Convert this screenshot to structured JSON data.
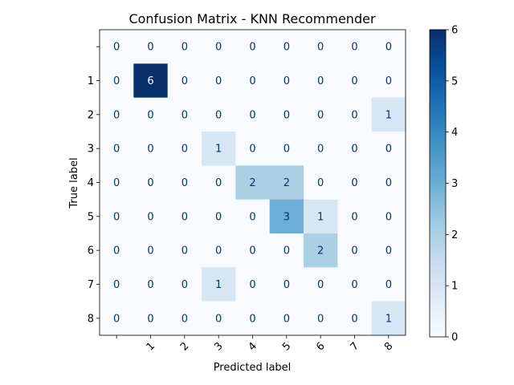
{
  "chart_data": {
    "type": "heatmap",
    "title": "Confusion Matrix - KNN Recommender",
    "xlabel": "Predicted label",
    "ylabel": "True label",
    "labels": [
      "",
      "1",
      "2",
      "3",
      "4",
      "5",
      "6",
      "7",
      "8"
    ],
    "matrix": [
      [
        0,
        0,
        0,
        0,
        0,
        0,
        0,
        0,
        0
      ],
      [
        0,
        6,
        0,
        0,
        0,
        0,
        0,
        0,
        0
      ],
      [
        0,
        0,
        0,
        0,
        0,
        0,
        0,
        0,
        1
      ],
      [
        0,
        0,
        0,
        1,
        0,
        0,
        0,
        0,
        0
      ],
      [
        0,
        0,
        0,
        0,
        2,
        2,
        0,
        0,
        0
      ],
      [
        0,
        0,
        0,
        0,
        0,
        3,
        1,
        0,
        0
      ],
      [
        0,
        0,
        0,
        0,
        0,
        0,
        2,
        0,
        0
      ],
      [
        0,
        0,
        0,
        1,
        0,
        0,
        0,
        0,
        0
      ],
      [
        0,
        0,
        0,
        0,
        0,
        0,
        0,
        0,
        1
      ]
    ],
    "colormap": "Blues",
    "vmin": 0,
    "vmax": 6,
    "colorbar_ticks": [
      0,
      1,
      2,
      3,
      4,
      5,
      6
    ],
    "x_tick_rotation_deg": 45
  }
}
